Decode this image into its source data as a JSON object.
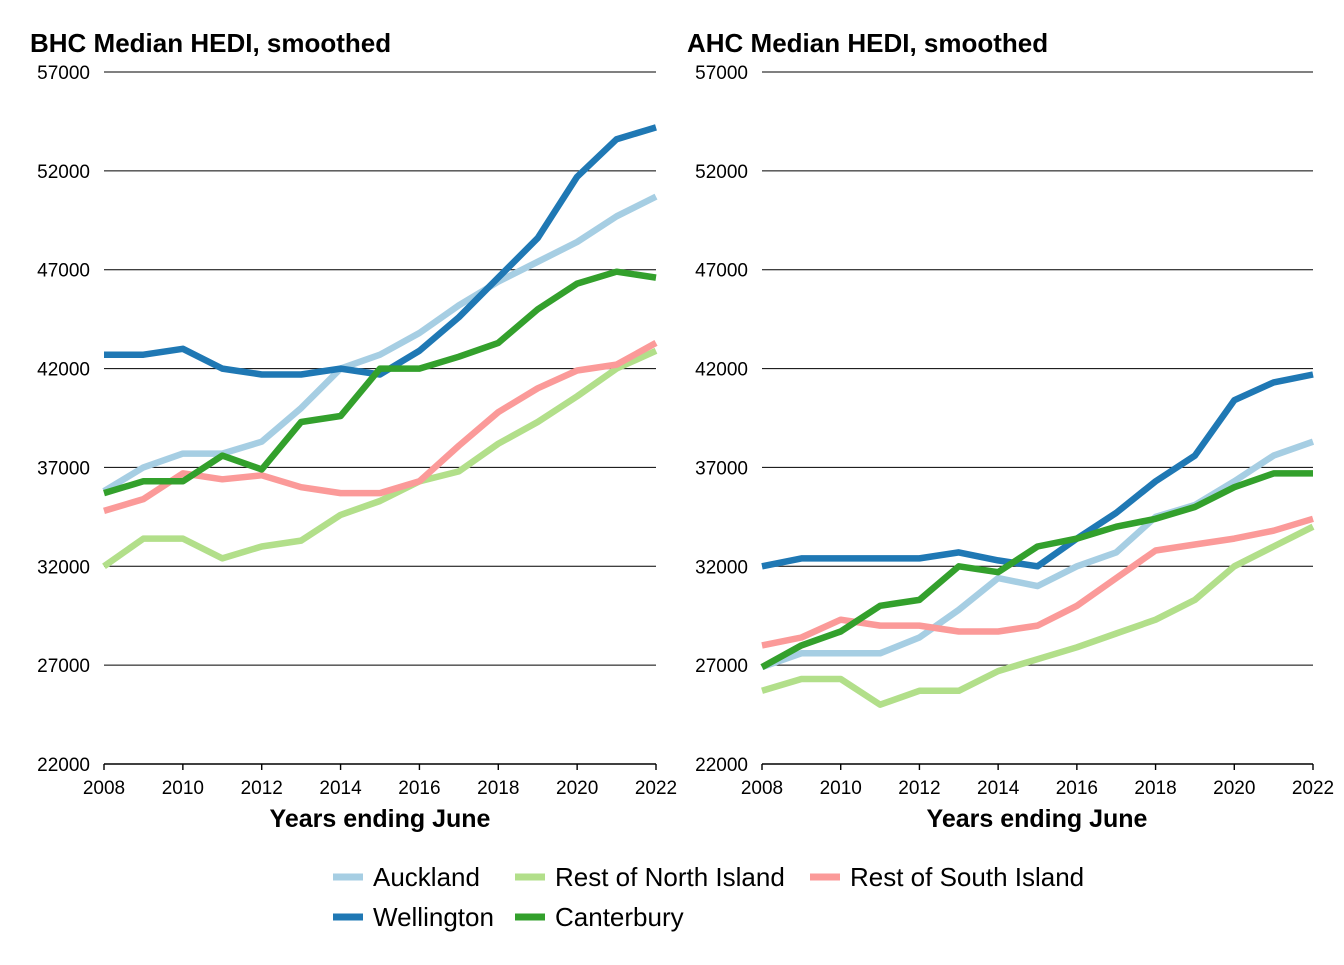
{
  "chart_data": [
    {
      "type": "line",
      "title": "BHC Median HEDI, smoothed",
      "xlabel": "Years ending June",
      "ylabel": "",
      "xlim": [
        2008,
        2022
      ],
      "ylim": [
        22000,
        57000
      ],
      "x_ticks": [
        "2008",
        "2010",
        "2012",
        "2014",
        "2016",
        "2018",
        "2020",
        "2022"
      ],
      "y_ticks": [
        "22000",
        "27000",
        "32000",
        "37000",
        "42000",
        "47000",
        "52000",
        "57000"
      ],
      "grid": "horizontal",
      "x": [
        2008,
        2009,
        2010,
        2011,
        2012,
        2013,
        2014,
        2015,
        2016,
        2017,
        2018,
        2019,
        2020,
        2021,
        2022
      ],
      "series": [
        {
          "name": "Auckland",
          "color": "#a6cee3",
          "values": [
            35800,
            37000,
            37700,
            37700,
            38300,
            40000,
            42000,
            42700,
            43800,
            45200,
            46400,
            47400,
            48400,
            49700,
            50700
          ]
        },
        {
          "name": "Rest of North Island",
          "color": "#b2df8a",
          "values": [
            32000,
            33400,
            33400,
            32400,
            33000,
            33300,
            34600,
            35300,
            36300,
            36800,
            38200,
            39300,
            40600,
            42000,
            42900
          ]
        },
        {
          "name": "Rest of South Island",
          "color": "#fb9a99",
          "values": [
            34800,
            35400,
            36700,
            36400,
            36600,
            36000,
            35700,
            35700,
            36300,
            38100,
            39800,
            41000,
            41900,
            42200,
            43300
          ]
        },
        {
          "name": "Wellington",
          "color": "#1f78b4",
          "values": [
            42700,
            42700,
            43000,
            42000,
            41700,
            41700,
            42000,
            41700,
            42900,
            44600,
            46600,
            48600,
            51700,
            53600,
            54200
          ]
        },
        {
          "name": "Canterbury",
          "color": "#33a02c",
          "values": [
            35700,
            36300,
            36300,
            37600,
            36900,
            39300,
            39600,
            42000,
            42000,
            42600,
            43300,
            45000,
            46300,
            46900,
            46600
          ]
        }
      ]
    },
    {
      "type": "line",
      "title": "AHC Median HEDI, smoothed",
      "xlabel": "Years ending June",
      "ylabel": "",
      "xlim": [
        2008,
        2022
      ],
      "ylim": [
        22000,
        57000
      ],
      "x_ticks": [
        "2008",
        "2010",
        "2012",
        "2014",
        "2016",
        "2018",
        "2020",
        "2022"
      ],
      "y_ticks": [
        "22000",
        "27000",
        "32000",
        "37000",
        "42000",
        "47000",
        "52000",
        "57000"
      ],
      "grid": "horizontal",
      "x": [
        2008,
        2009,
        2010,
        2011,
        2012,
        2013,
        2014,
        2015,
        2016,
        2017,
        2018,
        2019,
        2020,
        2021,
        2022
      ],
      "series": [
        {
          "name": "Auckland",
          "color": "#a6cee3",
          "values": [
            26900,
            27600,
            27600,
            27600,
            28400,
            29800,
            31400,
            31000,
            32000,
            32700,
            34500,
            35100,
            36300,
            37600,
            38300
          ]
        },
        {
          "name": "Rest of North Island",
          "color": "#b2df8a",
          "values": [
            25700,
            26300,
            26300,
            25000,
            25700,
            25700,
            26700,
            27300,
            27900,
            28600,
            29300,
            30300,
            32000,
            33000,
            34000
          ]
        },
        {
          "name": "Rest of South Island",
          "color": "#fb9a99",
          "values": [
            28000,
            28400,
            29300,
            29000,
            29000,
            28700,
            28700,
            29000,
            30000,
            31400,
            32800,
            33100,
            33400,
            33800,
            34400
          ]
        },
        {
          "name": "Wellington",
          "color": "#1f78b4",
          "values": [
            32000,
            32400,
            32400,
            32400,
            32400,
            32700,
            32300,
            32000,
            33400,
            34700,
            36300,
            37600,
            40400,
            41300,
            41700
          ]
        },
        {
          "name": "Canterbury",
          "color": "#33a02c",
          "values": [
            26900,
            28000,
            28700,
            30000,
            30300,
            32000,
            31700,
            33000,
            33400,
            34000,
            34400,
            35000,
            36000,
            36700,
            36700
          ]
        }
      ]
    }
  ],
  "legend": {
    "placement": "bottom",
    "entries": [
      {
        "label": "Auckland",
        "color": "#a6cee3"
      },
      {
        "label": "Rest of North Island",
        "color": "#b2df8a"
      },
      {
        "label": "Rest of South Island",
        "color": "#fb9a99"
      },
      {
        "label": "Wellington",
        "color": "#1f78b4"
      },
      {
        "label": "Canterbury",
        "color": "#33a02c"
      }
    ]
  }
}
